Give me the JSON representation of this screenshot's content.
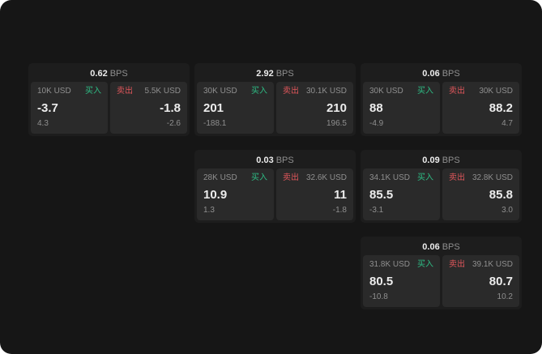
{
  "labels": {
    "bps_suffix": "BPS",
    "buy": "买入",
    "sell": "卖出"
  },
  "colors": {
    "page_bg": "#161616",
    "card_bg": "#1d1d1d",
    "panel_bg": "#2a2a2a",
    "buy": "#2ebd85",
    "sell": "#e0565b",
    "text_main": "#ececec",
    "text_dim": "#8f8f8f"
  },
  "cards": [
    {
      "bps": "0.62",
      "buy": {
        "size": "10K USD",
        "price": "-3.7",
        "delta": "4.3"
      },
      "sell": {
        "size": "5.5K USD",
        "price": "-1.8",
        "delta": "-2.6"
      }
    },
    {
      "bps": "2.92",
      "buy": {
        "size": "30K USD",
        "price": "201",
        "delta": "-188.1"
      },
      "sell": {
        "size": "30.1K USD",
        "price": "210",
        "delta": "196.5"
      }
    },
    {
      "bps": "0.06",
      "buy": {
        "size": "30K USD",
        "price": "88",
        "delta": "-4.9"
      },
      "sell": {
        "size": "30K USD",
        "price": "88.2",
        "delta": "4.7"
      }
    },
    {
      "bps": "0.03",
      "buy": {
        "size": "28K USD",
        "price": "10.9",
        "delta": "1.3"
      },
      "sell": {
        "size": "32.6K USD",
        "price": "11",
        "delta": "-1.8"
      }
    },
    {
      "bps": "0.09",
      "buy": {
        "size": "34.1K USD",
        "price": "85.5",
        "delta": "-3.1"
      },
      "sell": {
        "size": "32.8K USD",
        "price": "85.8",
        "delta": "3.0"
      }
    },
    {
      "bps": "0.06",
      "buy": {
        "size": "31.8K USD",
        "price": "80.5",
        "delta": "-10.8"
      },
      "sell": {
        "size": "39.1K USD",
        "price": "80.7",
        "delta": "10.2"
      }
    }
  ]
}
